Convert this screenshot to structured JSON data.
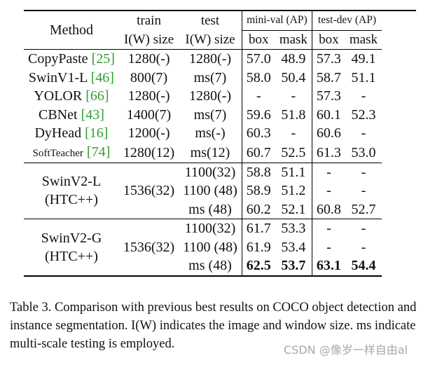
{
  "table": {
    "header": {
      "method": "Method",
      "train": "train",
      "train_sub": "I(W) size",
      "test": "test",
      "test_sub": "I(W) size",
      "minival": "mini-val (AP)",
      "testdev": "test-dev (AP)",
      "box": "box",
      "mask": "mask"
    },
    "rows": [
      {
        "name": "CopyPaste",
        "ref": "[25]",
        "train": "1280(-)",
        "test": "1280(-)",
        "mv_box": "57.0",
        "mv_mask": "48.9",
        "td_box": "57.3",
        "td_mask": "49.1"
      },
      {
        "name": "SwinV1-L",
        "ref": "[46]",
        "train": "800(7)",
        "test": "ms(7)",
        "mv_box": "58.0",
        "mv_mask": "50.4",
        "td_box": "58.7",
        "td_mask": "51.1"
      },
      {
        "name": "YOLOR",
        "ref": "[66]",
        "train": "1280(-)",
        "test": "1280(-)",
        "mv_box": "-",
        "mv_mask": "-",
        "td_box": "57.3",
        "td_mask": "-"
      },
      {
        "name": "CBNet",
        "ref": "[43]",
        "train": "1400(7)",
        "test": "ms(7)",
        "mv_box": "59.6",
        "mv_mask": "51.8",
        "td_box": "60.1",
        "td_mask": "52.3"
      },
      {
        "name": "DyHead",
        "ref": "[16]",
        "train": "1200(-)",
        "test": "ms(-)",
        "mv_box": "60.3",
        "mv_mask": "-",
        "td_box": "60.6",
        "td_mask": "-"
      },
      {
        "name": "SoftTeacher",
        "ref": "[74]",
        "train": "1280(12)",
        "test": "ms(12)",
        "mv_box": "60.7",
        "mv_mask": "52.5",
        "td_box": "61.3",
        "td_mask": "53.0"
      }
    ],
    "swinv2l": {
      "name1": "SwinV2-L",
      "name2": "(HTC++)",
      "train": "1536(32)",
      "rows": [
        {
          "test": "1100(32)",
          "mv_box": "58.8",
          "mv_mask": "51.1",
          "td_box": "-",
          "td_mask": "-"
        },
        {
          "test": "1100 (48)",
          "mv_box": "58.9",
          "mv_mask": "51.2",
          "td_box": "-",
          "td_mask": "-"
        },
        {
          "test": "ms (48)",
          "mv_box": "60.2",
          "mv_mask": "52.1",
          "td_box": "60.8",
          "td_mask": "52.7"
        }
      ]
    },
    "swinv2g": {
      "name1": "SwinV2-G",
      "name2": "(HTC++)",
      "train": "1536(32)",
      "rows": [
        {
          "test": "1100(32)",
          "mv_box": "61.7",
          "mv_mask": "53.3",
          "td_box": "-",
          "td_mask": "-"
        },
        {
          "test": "1100 (48)",
          "mv_box": "61.9",
          "mv_mask": "53.4",
          "td_box": "-",
          "td_mask": "-"
        },
        {
          "test": "ms (48)",
          "mv_box": "62.5",
          "mv_mask": "53.7",
          "td_box": "63.1",
          "td_mask": "54.4"
        }
      ]
    }
  },
  "caption": "Table 3. Comparison with previous best results on COCO object detection and instance segmentation. I(W) indicates the image and window size. ms indicate multi-scale testing is employed.",
  "watermark": "CSDN @像岁一样自由al"
}
